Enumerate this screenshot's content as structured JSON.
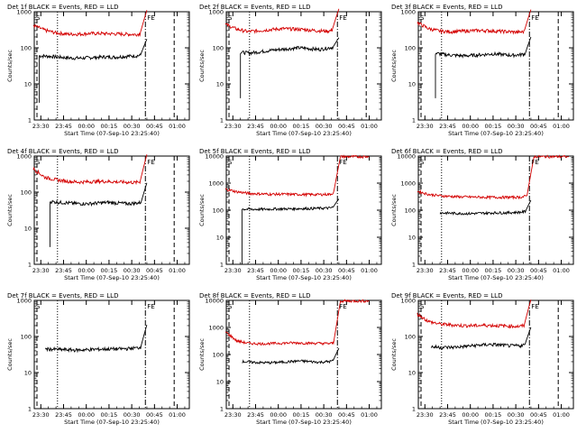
{
  "figure": {
    "background": "#ffffff",
    "axis_color": "#000000",
    "events_color": "#000000",
    "lld_color": "#d40000"
  },
  "chart_data": [
    {
      "type": "line",
      "title": "Det 1f BLACK = Events, RED = LLD",
      "xlabel": "Start Time (07-Sep-10 23:25:40)",
      "ylabel": "Counts/sec",
      "yscale": "log",
      "ylim": [
        1,
        1000
      ],
      "x_ticks": [
        "23:30",
        "23:45",
        "00:00",
        "00:15",
        "00:30",
        "00:45",
        "01:00"
      ],
      "y_ticks": [
        "1",
        "10",
        "100",
        "1000"
      ],
      "markers": {
        "left": "S",
        "right": "FE"
      },
      "vlines": {
        "dotted": "23:41",
        "dashdot": "00:39",
        "dashed": "00:58"
      },
      "series": [
        {
          "name": "BLACK = Events",
          "color": "#000000",
          "start": "23:29",
          "end": "00:40",
          "start_value": 3,
          "shape": [
            60,
            58,
            55,
            52,
            52,
            54,
            56,
            55,
            58,
            60,
            65
          ],
          "end_value": 175
        },
        {
          "name": "RED = LLD",
          "color": "#d40000",
          "start": "23:25",
          "end": "00:40",
          "shape": [
            420,
            310,
            260,
            240,
            240,
            250,
            250,
            245,
            240,
            235,
            260
          ],
          "end_value": 1100
        }
      ]
    },
    {
      "type": "line",
      "title": "Det 2f BLACK = Events, RED = LLD",
      "xlabel": "Start Time (07-Sep-10 23:25:40)",
      "ylabel": "Counts/sec",
      "yscale": "log",
      "ylim": [
        1,
        1000
      ],
      "x_ticks": [
        "23:30",
        "23:45",
        "00:00",
        "00:15",
        "00:30",
        "00:45",
        "01:00"
      ],
      "y_ticks": [
        "1",
        "10",
        "100",
        "1000"
      ],
      "markers": {
        "left": "S",
        "right": "FE"
      },
      "vlines": {
        "dotted": "23:41",
        "dashdot": "00:39",
        "dashed": "00:58"
      },
      "series": [
        {
          "name": "BLACK = Events",
          "color": "#000000",
          "start": "23:35",
          "end": "00:40",
          "start_value": 4,
          "shape": [
            75,
            72,
            78,
            85,
            90,
            95,
            100,
            95,
            90,
            100,
            110
          ],
          "end_value": 190
        },
        {
          "name": "RED = LLD",
          "color": "#d40000",
          "start": "23:25",
          "end": "00:40",
          "shape": [
            450,
            330,
            280,
            300,
            320,
            340,
            330,
            320,
            300,
            290,
            330
          ],
          "end_value": 1200
        }
      ]
    },
    {
      "type": "line",
      "title": "Det 3f BLACK = Events, RED = LLD",
      "xlabel": "Start Time (07-Sep-10 23:25:40)",
      "ylabel": "Counts/sec",
      "yscale": "log",
      "ylim": [
        1,
        1000
      ],
      "x_ticks": [
        "23:30",
        "23:45",
        "00:00",
        "00:15",
        "00:30",
        "00:45",
        "01:00"
      ],
      "y_ticks": [
        "1",
        "10",
        "100",
        "1000"
      ],
      "markers": {
        "left": "S",
        "right": "FE"
      },
      "vlines": {
        "dotted": "23:41",
        "dashdot": "00:39",
        "dashed": "00:58"
      },
      "series": [
        {
          "name": "BLACK = Events",
          "color": "#000000",
          "start": "23:37",
          "end": "00:40",
          "start_value": 4,
          "shape": [
            70,
            65,
            62,
            60,
            62,
            65,
            68,
            65,
            62,
            65,
            75
          ],
          "end_value": 200
        },
        {
          "name": "RED = LLD",
          "color": "#d40000",
          "start": "23:25",
          "end": "00:40",
          "shape": [
            500,
            340,
            290,
            280,
            290,
            300,
            300,
            290,
            280,
            270,
            300
          ],
          "end_value": 1150
        }
      ]
    },
    {
      "type": "line",
      "title": "Det 4f BLACK = Events, RED = LLD",
      "xlabel": "Start Time (07-Sep-10 23:25:40)",
      "ylabel": "Counts/sec",
      "yscale": "log",
      "ylim": [
        1,
        1000
      ],
      "x_ticks": [
        "23:30",
        "23:45",
        "00:00",
        "00:15",
        "00:30",
        "00:45",
        "01:00"
      ],
      "y_ticks": [
        "1",
        "10",
        "100",
        "1000"
      ],
      "markers": {
        "left": "S",
        "right": "FE"
      },
      "vlines": {
        "dotted": "23:41",
        "dashdot": "00:39",
        "dashed": "00:58"
      },
      "series": [
        {
          "name": "BLACK = Events",
          "color": "#000000",
          "start": "23:36",
          "end": "00:40",
          "start_value": 3,
          "shape": [
            55,
            52,
            50,
            48,
            48,
            50,
            52,
            50,
            48,
            50,
            55
          ],
          "end_value": 180
        },
        {
          "name": "RED = LLD",
          "color": "#d40000",
          "start": "23:25",
          "end": "00:40",
          "shape": [
            450,
            260,
            220,
            200,
            190,
            195,
            200,
            195,
            190,
            185,
            210
          ],
          "end_value": 1100
        }
      ]
    },
    {
      "type": "line",
      "title": "Det 5f BLACK = Events, RED = LLD",
      "xlabel": "Start Time (07-Sep-10 23:25:40)",
      "ylabel": "Counts/sec",
      "yscale": "log",
      "ylim": [
        1,
        10000
      ],
      "x_ticks": [
        "23:30",
        "23:45",
        "00:00",
        "00:15",
        "00:30",
        "00:45",
        "01:00"
      ],
      "y_ticks": [
        "1",
        "10",
        "100",
        "1000",
        "10000"
      ],
      "markers": {
        "left": "S",
        "right": "FE"
      },
      "vlines": {
        "dotted": "23:41",
        "dashdot": "00:39"
      },
      "series": [
        {
          "name": "BLACK = Events",
          "color": "#000000",
          "start": "23:36",
          "end": "00:40",
          "start_value": 1,
          "shape": [
            110,
            108,
            108,
            110,
            112,
            112,
            115,
            115,
            118,
            120,
            140
          ],
          "end_value": 260
        },
        {
          "name": "RED = LLD",
          "color": "#d40000",
          "start": "23:25",
          "end": "00:41",
          "shape": [
            600,
            480,
            420,
            400,
            390,
            390,
            385,
            380,
            380,
            385,
            500
          ],
          "end_value": 9500
        },
        {
          "name": "RED = LLD",
          "color": "#d40000",
          "start": "00:41",
          "end": "01:00",
          "shape": [
            9500,
            9500
          ],
          "end_value": 9500
        }
      ]
    },
    {
      "type": "line",
      "title": "Det 6f BLACK = Events, RED = LLD",
      "xlabel": "Start Time (07-Sep-10 23:25:40)",
      "ylabel": "Counts/sec",
      "yscale": "log",
      "ylim": [
        1,
        10000
      ],
      "x_ticks": [
        "23:30",
        "23:45",
        "00:00",
        "00:15",
        "00:30",
        "00:45",
        "01:00"
      ],
      "y_ticks": [
        "1",
        "10",
        "100",
        "1000",
        "10000"
      ],
      "markers": {
        "left": "S",
        "right": "FE"
      },
      "vlines": {
        "dotted": "23:41",
        "dashdot": "00:39"
      },
      "series": [
        {
          "name": "BLACK = Events",
          "color": "#000000",
          "start": "23:40",
          "end": "00:40",
          "shape": [
            80,
            78,
            76,
            75,
            76,
            78,
            80,
            80,
            82,
            85,
            100
          ],
          "end_value": 230
        },
        {
          "name": "RED = LLD",
          "color": "#d40000",
          "start": "23:25",
          "end": "00:42",
          "shape": [
            500,
            380,
            340,
            320,
            310,
            305,
            300,
            300,
            300,
            305,
            400
          ],
          "end_value": 9500
        },
        {
          "name": "RED = LLD",
          "color": "#d40000",
          "start": "00:42",
          "end": "01:05",
          "shape": [
            9500,
            9500
          ],
          "end_value": 9500
        }
      ]
    },
    {
      "type": "line",
      "title": "Det 7f BLACK = Events, RED = LLD",
      "xlabel": "Start Time (07-Sep-10 23:25:40)",
      "ylabel": "Counts/sec",
      "yscale": "log",
      "ylim": [
        1,
        1000
      ],
      "x_ticks": [
        "23:30",
        "23:45",
        "00:00",
        "00:15",
        "00:30",
        "00:45",
        "01:00"
      ],
      "y_ticks": [
        "1",
        "10",
        "100",
        "1000"
      ],
      "markers": {
        "left": "S",
        "right": "FE"
      },
      "vlines": {
        "dotted": "23:41",
        "dashdot": "00:39",
        "dashed": "00:58"
      },
      "series": [
        {
          "name": "BLACK = Events",
          "color": "#000000",
          "start": "23:33",
          "end": "00:40",
          "shape": [
            45,
            44,
            43,
            42,
            43,
            44,
            45,
            45,
            46,
            48,
            55
          ],
          "end_value": 210
        }
      ]
    },
    {
      "type": "line",
      "title": "Det 8f BLACK = Events, RED = LLD",
      "xlabel": "Start Time (07-Sep-10 23:25:40)",
      "ylabel": "Counts/sec",
      "yscale": "log",
      "ylim": [
        1,
        10000
      ],
      "x_ticks": [
        "23:30",
        "23:45",
        "00:00",
        "00:15",
        "00:30",
        "00:45",
        "01:00"
      ],
      "y_ticks": [
        "1",
        "10",
        "100",
        "1000",
        "10000"
      ],
      "markers": {
        "left": "S",
        "right": "FE"
      },
      "vlines": {
        "dotted": "23:41",
        "dashdot": "00:39"
      },
      "series": [
        {
          "name": "BLACK = Events",
          "color": "#000000",
          "start": "23:36",
          "end": "00:40",
          "shape": [
            55,
            52,
            50,
            50,
            52,
            55,
            58,
            55,
            52,
            55,
            65
          ],
          "end_value": 170
        },
        {
          "name": "RED = LLD",
          "color": "#d40000",
          "start": "23:25",
          "end": "00:41",
          "shape": [
            700,
            320,
            260,
            250,
            255,
            265,
            270,
            265,
            260,
            255,
            280
          ],
          "end_value": 9500
        },
        {
          "name": "RED = LLD",
          "color": "#d40000",
          "start": "00:41",
          "end": "01:00",
          "shape": [
            9500,
            9500
          ],
          "end_value": 9500
        }
      ]
    },
    {
      "type": "line",
      "title": "Det 9f BLACK = Events, RED = LLD",
      "xlabel": "Start Time (07-Sep-10 23:25:40)",
      "ylabel": "Counts/sec",
      "yscale": "log",
      "ylim": [
        1,
        1000
      ],
      "x_ticks": [
        "23:30",
        "23:45",
        "00:00",
        "00:15",
        "00:30",
        "00:45",
        "01:00"
      ],
      "y_ticks": [
        "1",
        "10",
        "100",
        "1000"
      ],
      "markers": {
        "left": "S",
        "right": "FE"
      },
      "vlines": {
        "dotted": "23:41",
        "dashdot": "00:39",
        "dashed": "00:58"
      },
      "series": [
        {
          "name": "BLACK = Events",
          "color": "#000000",
          "start": "23:34",
          "end": "00:40",
          "shape": [
            52,
            50,
            50,
            52,
            55,
            58,
            60,
            58,
            55,
            56,
            65
          ],
          "end_value": 180
        },
        {
          "name": "RED = LLD",
          "color": "#d40000",
          "start": "23:25",
          "end": "00:40",
          "shape": [
            420,
            260,
            220,
            210,
            200,
            200,
            205,
            200,
            195,
            190,
            220
          ],
          "end_value": 1050
        }
      ]
    }
  ]
}
